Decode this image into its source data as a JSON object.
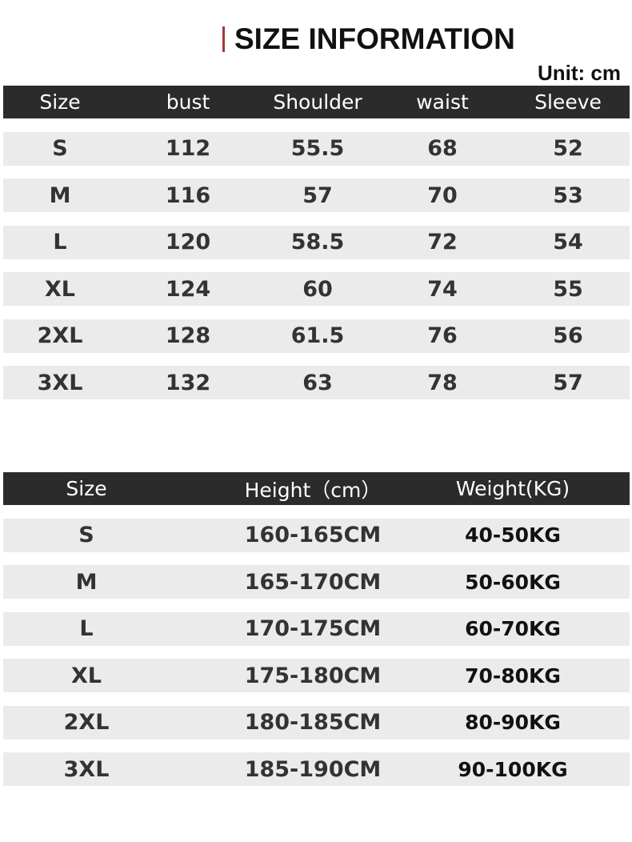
{
  "title": "SIZE INFORMATION",
  "unit": "Unit: cm",
  "accent_color": "#a33a3a",
  "size_table": {
    "headers": [
      "Size",
      "bust",
      "Shoulder",
      "waist",
      "Sleeve"
    ],
    "rows": [
      [
        "S",
        "112",
        "55.5",
        "68",
        "52"
      ],
      [
        "M",
        "116",
        "57",
        "70",
        "53"
      ],
      [
        "L",
        "120",
        "58.5",
        "72",
        "54"
      ],
      [
        "XL",
        "124",
        "60",
        "74",
        "55"
      ],
      [
        "2XL",
        "128",
        "61.5",
        "76",
        "56"
      ],
      [
        "3XL",
        "132",
        "63",
        "78",
        "57"
      ]
    ]
  },
  "fit_table": {
    "headers": [
      "Size",
      "Height（cm）",
      "Weight(KG)"
    ],
    "rows": [
      [
        "S",
        "160-165CM",
        "40-50KG"
      ],
      [
        "M",
        "165-170CM",
        "50-60KG"
      ],
      [
        "L",
        "170-175CM",
        "60-70KG"
      ],
      [
        "XL",
        "175-180CM",
        "70-80KG"
      ],
      [
        "2XL",
        "180-185CM",
        "80-90KG"
      ],
      [
        "3XL",
        "185-190CM",
        "90-100KG"
      ]
    ]
  }
}
